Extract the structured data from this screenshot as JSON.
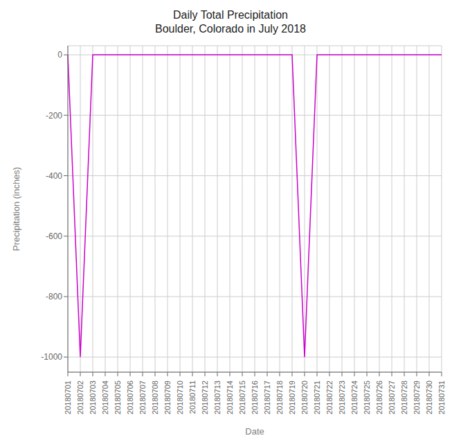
{
  "chart_data": {
    "type": "line",
    "title": "Daily Total Precipitation\nBoulder, Colorado in July 2018",
    "xlabel": "Date",
    "ylabel": "Precipitation (inches)",
    "categories": [
      "20180701",
      "20180702",
      "20180703",
      "20180704",
      "20180705",
      "20180706",
      "20180707",
      "20180708",
      "20180709",
      "20180710",
      "20180711",
      "20180712",
      "20180713",
      "20180714",
      "20180715",
      "20180716",
      "20180717",
      "20180718",
      "20180719",
      "20180720",
      "20180721",
      "20180722",
      "20180723",
      "20180724",
      "20180725",
      "20180726",
      "20180727",
      "20180728",
      "20180729",
      "20180730",
      "20180731"
    ],
    "values": [
      0.0,
      -999.99,
      0.0,
      0.0,
      0.0,
      0.0,
      0.0,
      0.0,
      0.0,
      0.0,
      0.0,
      0.0,
      0.0,
      0.0,
      0.0,
      0.0,
      0.0,
      0.0,
      0.0,
      -999.99,
      0.0,
      0.0,
      0.0,
      0.0,
      0.0,
      0.0,
      0.0,
      0.0,
      0.0,
      0.0,
      0.0
    ],
    "color": "#cc00cc",
    "ylim": [
      -1050,
      30
    ],
    "yticks": [
      0,
      -200,
      -400,
      -600,
      -800,
      -1000
    ],
    "grid": true
  }
}
